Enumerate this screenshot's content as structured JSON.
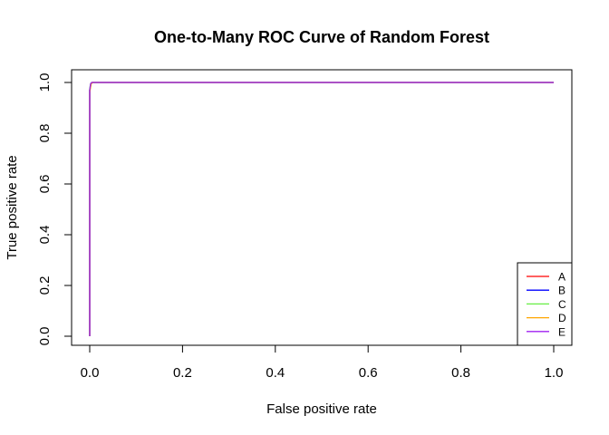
{
  "chart_data": {
    "type": "line",
    "title": "One-to-Many ROC Curve of Random Forest",
    "xlabel": "False positive rate",
    "ylabel": "True positive rate",
    "xlim": [
      0,
      1
    ],
    "ylim": [
      0,
      1
    ],
    "xticks": [
      "0.0",
      "0.2",
      "0.4",
      "0.6",
      "0.8",
      "1.0"
    ],
    "yticks": [
      "0.0",
      "0.2",
      "0.4",
      "0.6",
      "0.8",
      "1.0"
    ],
    "grid": false,
    "legend_position": "bottom-right",
    "series": [
      {
        "name": "A",
        "color": "#ff0000",
        "x": [
          0,
          0,
          0.003,
          0.005,
          1
        ],
        "y": [
          0,
          0.97,
          0.995,
          1,
          1
        ]
      },
      {
        "name": "B",
        "color": "#0000ff",
        "x": [
          0,
          0,
          0.003,
          0.006,
          1
        ],
        "y": [
          0,
          0.97,
          0.995,
          1,
          1
        ]
      },
      {
        "name": "C",
        "color": "#66ee44",
        "x": [
          0,
          0,
          0.002,
          0.005,
          1
        ],
        "y": [
          0,
          0.975,
          0.996,
          1,
          1
        ]
      },
      {
        "name": "D",
        "color": "#ffa500",
        "x": [
          0,
          0,
          0.003,
          0.006,
          1
        ],
        "y": [
          0,
          0.96,
          0.994,
          1,
          1
        ]
      },
      {
        "name": "E",
        "color": "#a020f0",
        "x": [
          0,
          0,
          0.002,
          0.004,
          1
        ],
        "y": [
          0,
          0.97,
          0.995,
          1,
          1
        ]
      }
    ]
  }
}
